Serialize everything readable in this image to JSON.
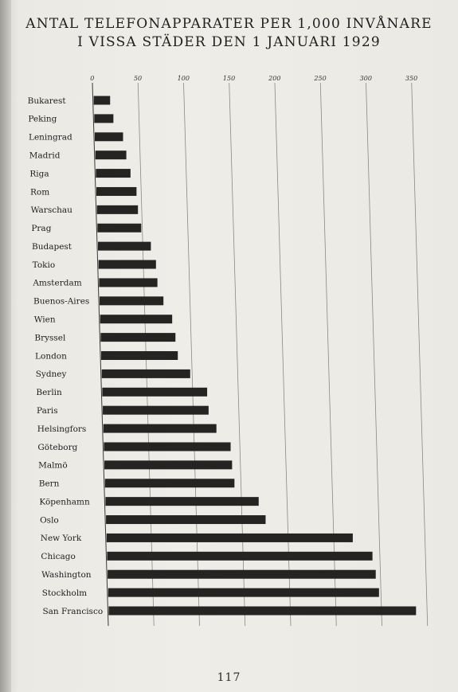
{
  "page": {
    "title_line1": "ANTAL TELEFONAPPARATER PER 1,000 INVÅNARE",
    "title_line2": "I VISSA STÄDER DEN 1 JANUARI 1929",
    "page_number": "117"
  },
  "chart_data": {
    "type": "bar",
    "orientation": "horizontal",
    "title": "ANTAL TELEFONAPPARATER PER 1,000 INVÅNARE I VISSA STÄDER DEN 1 JANUARI 1929",
    "xlabel": "",
    "ylabel": "",
    "xlim": [
      0,
      350
    ],
    "xticks": [
      0,
      50,
      100,
      150,
      200,
      250,
      300,
      350
    ],
    "xtick_labels": [
      "0",
      "50",
      "100",
      "150",
      "200",
      "250",
      "300",
      "350"
    ],
    "grid": true,
    "bar_color": "#262422",
    "categories": [
      "Bukarest",
      "Peking",
      "Leningrad",
      "Madrid",
      "Riga",
      "Rom",
      "Warschau",
      "Prag",
      "Budapest",
      "Tokio",
      "Amsterdam",
      "Buenos-Aires",
      "Wien",
      "Bryssel",
      "London",
      "Sydney",
      "Berlin",
      "Paris",
      "Helsingfors",
      "Göteborg",
      "Malmö",
      "Bern",
      "Köpenhamn",
      "Oslo",
      "New York",
      "Chicago",
      "Washington",
      "Stockholm",
      "San Francisco"
    ],
    "values": [
      18,
      21,
      31,
      34,
      38,
      44,
      45,
      48,
      58,
      63,
      64,
      70,
      79,
      82,
      84,
      97,
      115,
      116,
      124,
      139,
      140,
      142,
      168,
      175,
      270,
      291,
      294,
      297,
      337
    ]
  }
}
